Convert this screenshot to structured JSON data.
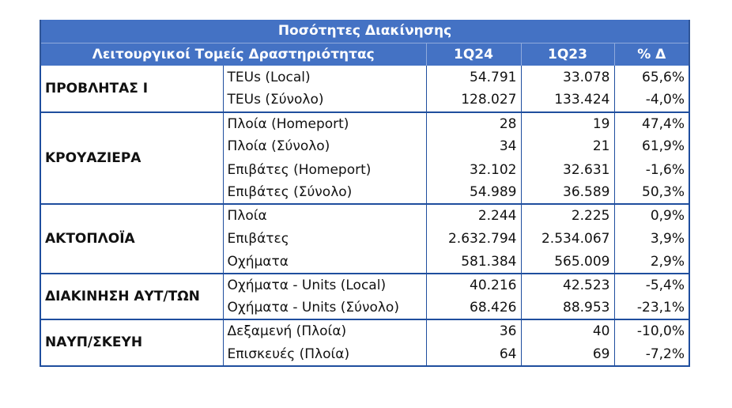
{
  "table": {
    "title": "Ποσότητες Διακίνησης",
    "headers": {
      "sector": "Λειτουργικοί Τομείς Δραστηριότητας",
      "col1": "1Q24",
      "col2": "1Q23",
      "col3": "% Δ"
    },
    "groups": [
      {
        "sector": "ΠΡΟΒΛΗΤΑΣ Ι",
        "rows": [
          {
            "metric": "TEUs (Local)",
            "v1": "54.791",
            "v2": "33.078",
            "pct": "65,6%"
          },
          {
            "metric": "TEUs (Σύνολο)",
            "v1": "128.027",
            "v2": "133.424",
            "pct": "-4,0%"
          }
        ]
      },
      {
        "sector": "ΚΡΟΥΑΖΙΕΡΑ",
        "rows": [
          {
            "metric": "Πλοία (Homeport)",
            "v1": "28",
            "v2": "19",
            "pct": "47,4%"
          },
          {
            "metric": "Πλοία (Σύνολο)",
            "v1": "34",
            "v2": "21",
            "pct": "61,9%"
          },
          {
            "metric": "Επιβάτες (Homeport)",
            "v1": "32.102",
            "v2": "32.631",
            "pct": "-1,6%"
          },
          {
            "metric": "Επιβάτες (Σύνολο)",
            "v1": "54.989",
            "v2": "36.589",
            "pct": "50,3%"
          }
        ]
      },
      {
        "sector": "ΑΚΤΟΠΛΟΪΑ",
        "rows": [
          {
            "metric": "Πλοία",
            "v1": "2.244",
            "v2": "2.225",
            "pct": "0,9%"
          },
          {
            "metric": "Επιβάτες",
            "v1": "2.632.794",
            "v2": "2.534.067",
            "pct": "3,9%"
          },
          {
            "metric": "Οχήματα",
            "v1": "581.384",
            "v2": "565.009",
            "pct": "2,9%"
          }
        ]
      },
      {
        "sector": "ΔΙΑΚΙΝΗΣΗ ΑΥΤ/ΤΩΝ",
        "rows": [
          {
            "metric": "Οχήματα - Units (Local)",
            "v1": "40.216",
            "v2": "42.523",
            "pct": "-5,4%"
          },
          {
            "metric": "Οχήματα - Units (Σύνολο)",
            "v1": "68.426",
            "v2": "88.953",
            "pct": "-23,1%"
          }
        ]
      },
      {
        "sector": "ΝΑΥΠ/ΣΚΕΥΗ",
        "rows": [
          {
            "metric": "Δεξαμενή (Πλοία)",
            "v1": "36",
            "v2": "40",
            "pct": "-10,0%"
          },
          {
            "metric": "Επισκευές (Πλοία)",
            "v1": "64",
            "v2": "69",
            "pct": "-7,2%"
          }
        ]
      }
    ]
  }
}
